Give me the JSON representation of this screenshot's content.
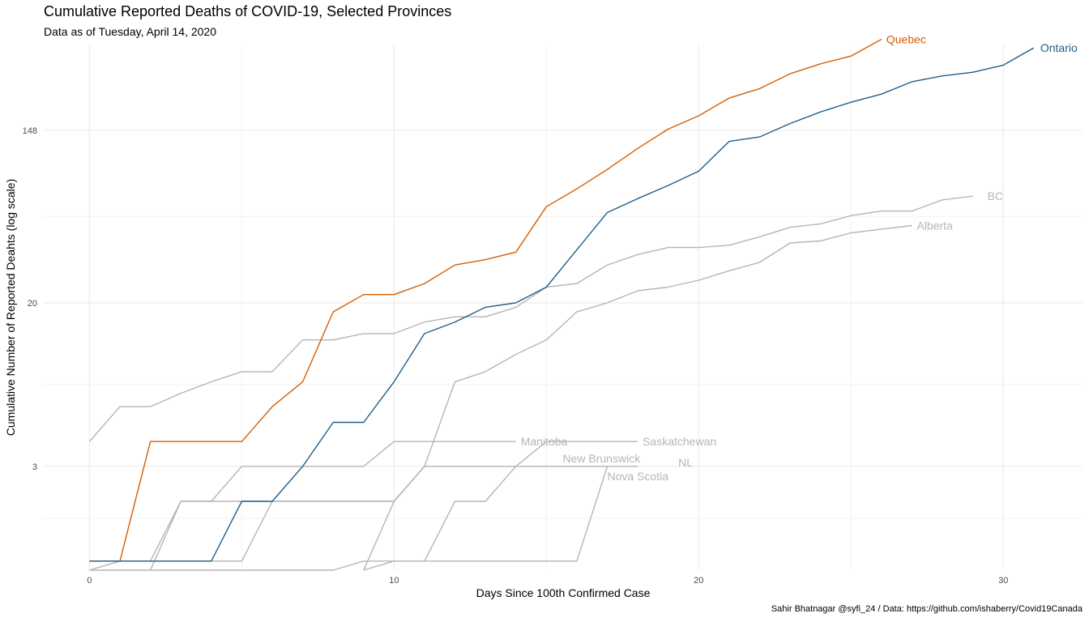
{
  "chart_data": {
    "type": "line",
    "title": "Cumulative Reported Deaths of COVID-19, Selected Provinces",
    "subtitle": "Data as of Tuesday, April 14, 2020",
    "caption": "Sahir Bhatnagar @syfi_24 / Data: https://github.com/ishaberry/Covid19Canada",
    "xlabel": "Days Since 100th Confirmed Case",
    "ylabel": "Cumulative Number of Reported Deahts (log scale)",
    "ylog": true,
    "xlim": [
      -1.5,
      32.6
    ],
    "ylim": [
      0.9,
      400
    ],
    "x_ticks": [
      0,
      10,
      20,
      30
    ],
    "y_ticks": [
      3,
      20,
      148
    ],
    "grid": true,
    "legend": "none",
    "colors": {
      "highlight_quebec": "#D55E00",
      "highlight_ontario": "#1F5F8B",
      "other": "#B5B5B5"
    },
    "series": [
      {
        "name": "Quebec",
        "color": "#D55E00",
        "label_offset": [
          6,
          0
        ],
        "x": [
          0,
          1,
          2,
          3,
          4,
          5,
          6,
          7,
          8,
          9,
          10,
          11,
          12,
          13,
          14,
          15,
          16,
          17,
          18,
          19,
          20,
          21,
          22,
          23,
          24,
          25,
          26
        ],
        "y": [
          1,
          1,
          4,
          4,
          4,
          4,
          6,
          8,
          18,
          22,
          22,
          25,
          31,
          33,
          36,
          61,
          75,
          94,
          120,
          150,
          175,
          215,
          240,
          285,
          320,
          350,
          425
        ]
      },
      {
        "name": "Ontario",
        "color": "#1F5F8B",
        "label_offset": [
          8,
          0
        ],
        "x": [
          0,
          1,
          2,
          3,
          4,
          5,
          6,
          7,
          8,
          9,
          10,
          11,
          12,
          13,
          14,
          15,
          16,
          17,
          18,
          19,
          20,
          21,
          22,
          23,
          24,
          25,
          26,
          27,
          28,
          29,
          30,
          31
        ],
        "y": [
          1,
          1,
          1,
          1,
          1,
          2,
          2,
          3,
          5,
          5,
          8,
          14,
          16,
          19,
          20,
          24,
          37,
          57,
          67,
          78,
          92,
          130,
          137,
          160,
          183,
          205,
          225,
          260,
          278,
          290,
          315,
          385
        ]
      },
      {
        "name": "BC",
        "color": "#B5B5B5",
        "label_offset": [
          18,
          0
        ],
        "x": [
          0,
          1,
          2,
          3,
          4,
          5,
          6,
          7,
          8,
          9,
          10,
          11,
          12,
          13,
          14,
          15,
          16,
          17,
          18,
          19,
          20,
          21,
          22,
          23,
          24,
          25,
          26,
          27,
          28,
          29
        ],
        "y": [
          4,
          6,
          6,
          7,
          8,
          9,
          9,
          13,
          13,
          14,
          14,
          16,
          17,
          17,
          19,
          24,
          25,
          31,
          35,
          38,
          38,
          39,
          43,
          48,
          50,
          55,
          58,
          58,
          66,
          69
        ]
      },
      {
        "name": "Alberta",
        "color": "#B5B5B5",
        "label_offset": [
          6,
          0
        ],
        "x": [
          0,
          1,
          2,
          3,
          4,
          5,
          6,
          7,
          8,
          9,
          10,
          11,
          12,
          13,
          14,
          15,
          16,
          17,
          18,
          19,
          20,
          21,
          22,
          23,
          24,
          25,
          26,
          27
        ],
        "y": [
          0.9,
          1,
          1,
          1,
          1,
          1,
          2,
          2,
          2,
          2,
          2,
          3,
          8,
          9,
          11,
          13,
          18,
          20,
          23,
          24,
          26,
          29,
          32,
          40,
          41,
          45,
          47,
          49
        ]
      },
      {
        "name": "Manitoba",
        "color": "#B5B5B5",
        "label_offset": [
          6,
          0
        ],
        "x": [
          2,
          3,
          4,
          5,
          6,
          7,
          8,
          9,
          10,
          11,
          12,
          13,
          14
        ],
        "y": [
          0.9,
          2,
          2,
          3,
          3,
          3,
          3,
          3,
          4,
          4,
          4,
          4,
          4
        ]
      },
      {
        "name": "Saskatchewan",
        "color": "#B5B5B5",
        "label_offset": [
          6,
          0
        ],
        "x": [
          2,
          3,
          4,
          5,
          6,
          7,
          8,
          9,
          10,
          11,
          12,
          13,
          14,
          15,
          16,
          17,
          18
        ],
        "y": [
          1,
          2,
          2,
          2,
          2,
          2,
          2,
          2,
          2,
          3,
          3,
          3,
          3,
          4,
          4,
          4,
          4
        ]
      },
      {
        "name": "NL",
        "color": "#B5B5B5",
        "label_offset": [
          50,
          -5
        ],
        "x": [
          0,
          1,
          2,
          3,
          4,
          5,
          6,
          7,
          8,
          9,
          10,
          11,
          12,
          13,
          14,
          15,
          16,
          17,
          18
        ],
        "y": [
          0.9,
          0.9,
          0.9,
          0.9,
          0.9,
          0.9,
          0.9,
          0.9,
          0.9,
          1,
          1,
          1,
          1,
          1,
          1,
          1,
          1,
          3,
          3
        ]
      },
      {
        "name": "Nova Scotia",
        "color": "#B5B5B5",
        "label_offset": [
          0,
          12
        ],
        "x": [
          9,
          10,
          11,
          12,
          13,
          14,
          15,
          16,
          17
        ],
        "y": [
          0.9,
          2,
          3,
          3,
          3,
          3,
          3,
          3,
          3
        ]
      },
      {
        "name": "New Brunswick",
        "color": "#B5B5B5",
        "label_offset": [
          -55,
          -10
        ],
        "x": [
          9,
          10,
          11,
          12,
          13,
          14,
          15,
          16,
          17
        ],
        "y": [
          0.9,
          1,
          1,
          2,
          2,
          3,
          3,
          3,
          3
        ]
      }
    ]
  }
}
